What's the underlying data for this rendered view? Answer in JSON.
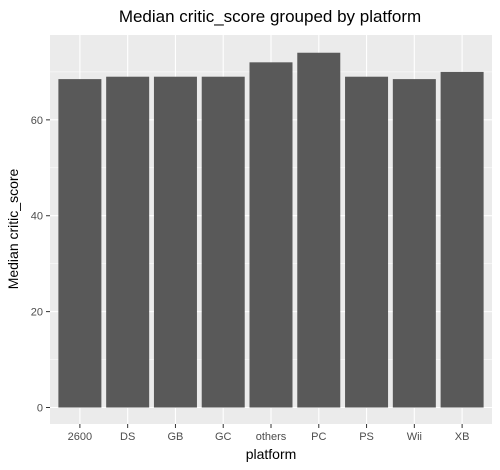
{
  "chart_data": {
    "type": "bar",
    "title": "Median critic_score grouped by platform",
    "xlabel": "platform",
    "ylabel": "Median critic_score",
    "categories": [
      "2600",
      "DS",
      "GB",
      "GC",
      "others",
      "PC",
      "PS",
      "Wii",
      "XB"
    ],
    "values": [
      68.5,
      69,
      69,
      69,
      72,
      74,
      69,
      68.5,
      70
    ],
    "ylim": [
      0,
      77.7
    ],
    "yticks": [
      0,
      20,
      40,
      60
    ],
    "grid": true,
    "legend": "none",
    "colors": {
      "bar": "#595959",
      "panel": "#ebebeb",
      "grid_major": "#ffffff",
      "tick_text": "#4d4d4d"
    }
  }
}
